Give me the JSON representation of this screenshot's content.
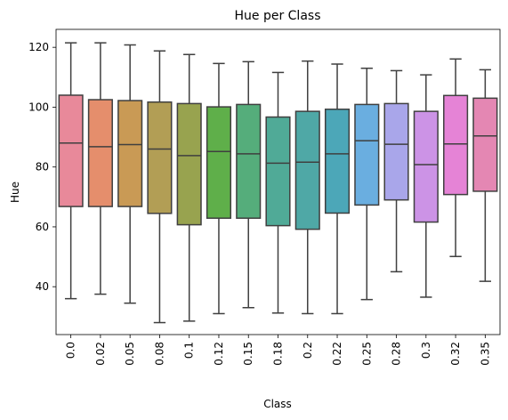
{
  "chart_data": {
    "type": "box",
    "title": "Hue per Class",
    "xlabel": "Class",
    "ylabel": "Hue",
    "ylim": [
      24,
      126
    ],
    "yticks": [
      40,
      60,
      80,
      100,
      120
    ],
    "grid": false,
    "legend": false,
    "categories": [
      "0.0",
      "0.02",
      "0.05",
      "0.08",
      "0.1",
      "0.12",
      "0.15",
      "0.18",
      "0.2",
      "0.22",
      "0.25",
      "0.28",
      "0.3",
      "0.32",
      "0.35"
    ],
    "boxes": [
      {
        "category": "0.0",
        "whisker_low": 36.0,
        "q1": 66.8,
        "median": 88.0,
        "q3": 104.0,
        "whisker_high": 121.5,
        "color": "#E8899A"
      },
      {
        "category": "0.02",
        "whisker_low": 37.5,
        "q1": 66.8,
        "median": 86.8,
        "q3": 102.5,
        "whisker_high": 121.5,
        "color": "#E58E6C"
      },
      {
        "category": "0.05",
        "whisker_low": 34.5,
        "q1": 66.8,
        "median": 87.5,
        "q3": 102.2,
        "whisker_high": 120.8,
        "color": "#C99A55"
      },
      {
        "category": "0.08",
        "whisker_low": 28.0,
        "q1": 64.5,
        "median": 86.0,
        "q3": 101.7,
        "whisker_high": 118.8,
        "color": "#B29E55"
      },
      {
        "category": "0.1",
        "whisker_low": 28.5,
        "q1": 60.7,
        "median": 83.8,
        "q3": 101.2,
        "whisker_high": 117.6,
        "color": "#98A34F"
      },
      {
        "category": "0.12",
        "whisker_low": 31.0,
        "q1": 62.9,
        "median": 85.2,
        "q3": 100.1,
        "whisker_high": 114.6,
        "color": "#5FAF4A"
      },
      {
        "category": "0.15",
        "whisker_low": 33.0,
        "q1": 62.9,
        "median": 84.4,
        "q3": 100.9,
        "whisker_high": 115.2,
        "color": "#55AD7B"
      },
      {
        "category": "0.18",
        "whisker_low": 31.2,
        "q1": 60.4,
        "median": 81.3,
        "q3": 96.7,
        "whisker_high": 111.6,
        "color": "#50AA97"
      },
      {
        "category": "0.2",
        "whisker_low": 31.0,
        "q1": 59.2,
        "median": 81.6,
        "q3": 98.6,
        "whisker_high": 115.4,
        "color": "#4FA8A6"
      },
      {
        "category": "0.22",
        "whisker_low": 31.0,
        "q1": 64.6,
        "median": 84.4,
        "q3": 99.3,
        "whisker_high": 114.4,
        "color": "#4CA7B8"
      },
      {
        "category": "0.25",
        "whisker_low": 35.7,
        "q1": 67.3,
        "median": 88.8,
        "q3": 100.9,
        "whisker_high": 113.0,
        "color": "#6AAEE0"
      },
      {
        "category": "0.28",
        "whisker_low": 45.0,
        "q1": 69.0,
        "median": 87.6,
        "q3": 101.2,
        "whisker_high": 112.2,
        "color": "#A9A6EA"
      },
      {
        "category": "0.3",
        "whisker_low": 36.5,
        "q1": 61.6,
        "median": 80.8,
        "q3": 98.6,
        "whisker_high": 110.8,
        "color": "#CC93E6"
      },
      {
        "category": "0.32",
        "whisker_low": 50.1,
        "q1": 70.8,
        "median": 87.7,
        "q3": 103.9,
        "whisker_high": 116.1,
        "color": "#E583D6"
      },
      {
        "category": "0.35",
        "whisker_low": 41.8,
        "q1": 71.9,
        "median": 90.4,
        "q3": 103.0,
        "whisker_high": 112.5,
        "color": "#E487B3"
      }
    ]
  }
}
